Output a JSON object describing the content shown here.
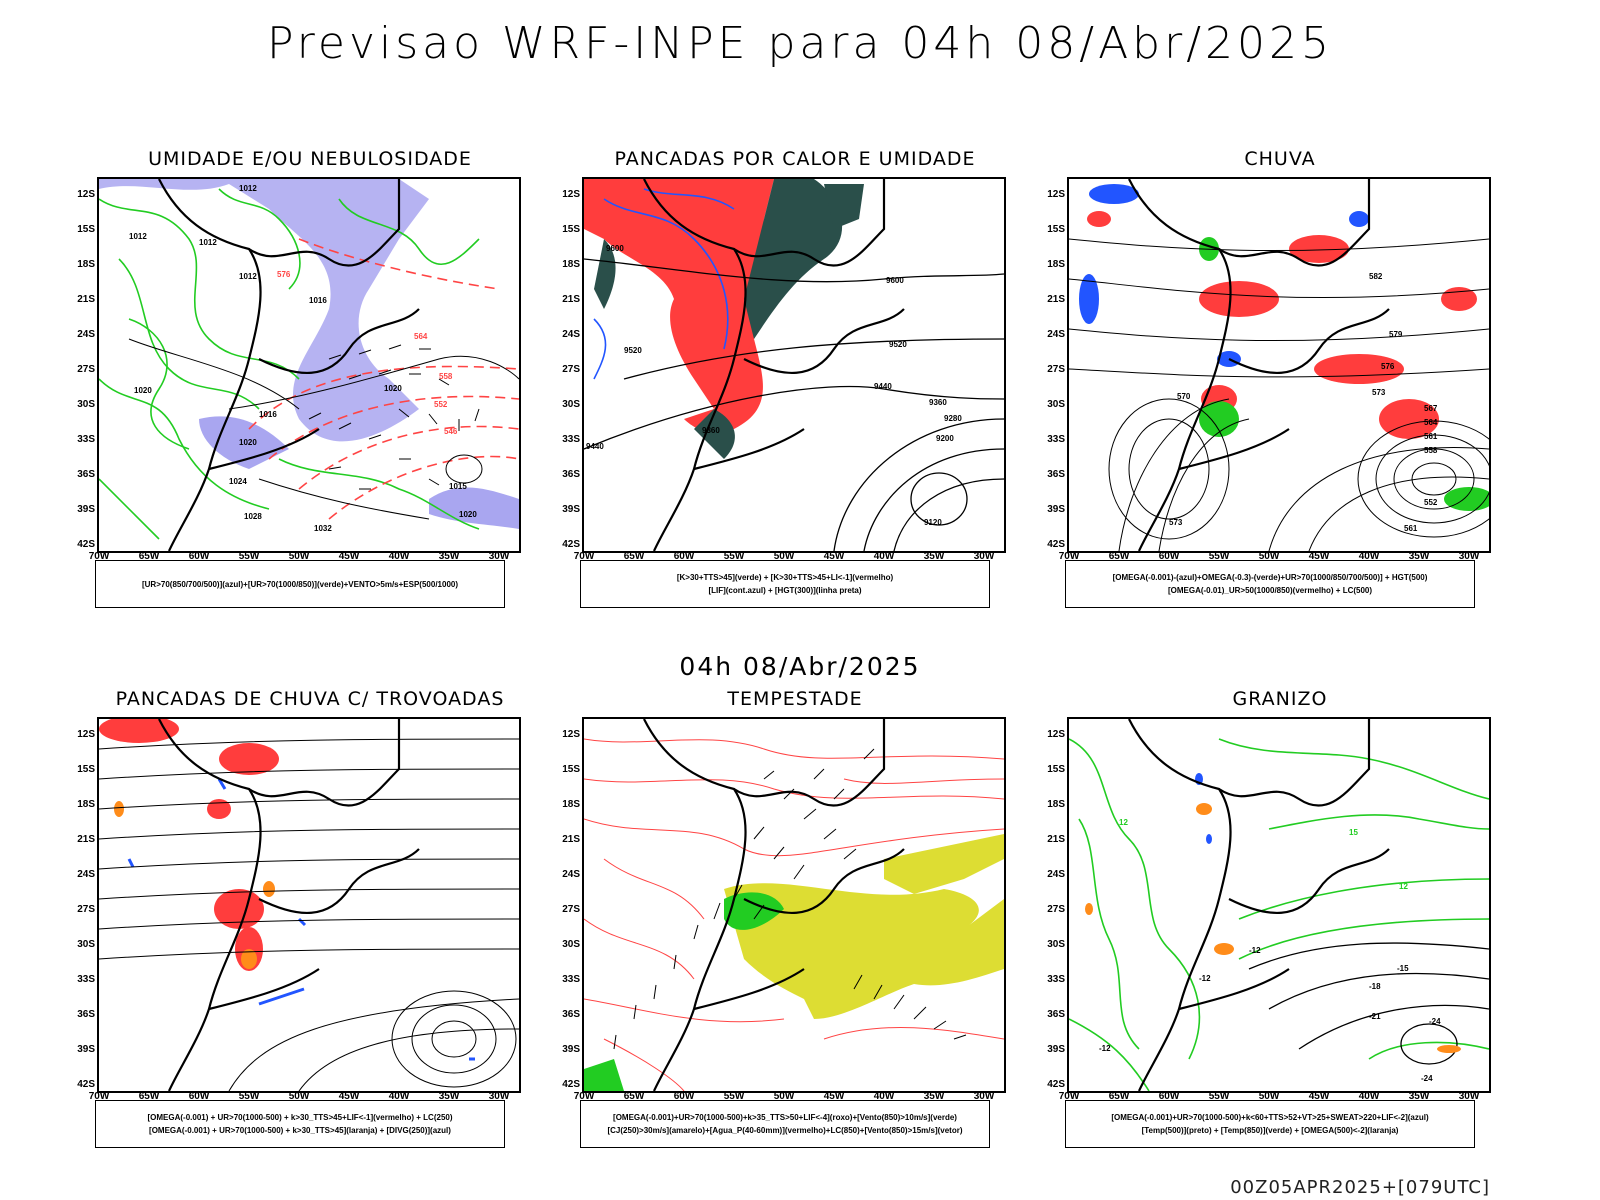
{
  "title": "Previsao WRF-INPE  para 04h 08/Abr/2025",
  "mid_label": "04h 08/Abr/2025",
  "footer": "00Z05APR2025+[079UTC]",
  "y_ticks": [
    "12S",
    "15S",
    "18S",
    "21S",
    "24S",
    "27S",
    "30S",
    "33S",
    "36S",
    "39S",
    "42S"
  ],
  "x_ticks": [
    "70W",
    "65W",
    "60W",
    "55W",
    "50W",
    "45W",
    "40W",
    "35W",
    "30W"
  ],
  "panels": [
    {
      "title": "UMIDADE E/OU NEBULOSIDADE",
      "legend": [
        "[UR>70(850/700/500)](azul)+[UR>70(1000/850)](verde)+VENTO>5m/s+ESP(500/1000)"
      ]
    },
    {
      "title": "PANCADAS POR CALOR E UMIDADE",
      "legend": [
        "[K>30+TTS>45](verde) + [K>30+TTS>45+LI<-1](vermelho)",
        "[LIF](cont.azul) + [HGT(300)](linha preta)"
      ]
    },
    {
      "title": "CHUVA",
      "legend": [
        "[OMEGA(-0.001)-(azul)+OMEGA(-0.3)-(verde)+UR>70(1000/850/700/500)] + HGT(500)",
        "[OMEGA(-0.01)_UR>50(1000/850)(vermelho) + LC(500)"
      ]
    },
    {
      "title": "PANCADAS DE CHUVA C/ TROVOADAS",
      "legend": [
        "[OMEGA(-0.001) + UR>70(1000-500) + k>30_TTS>45+LIF<-1](vermelho) + LC(250)",
        "[OMEGA(-0.001) + UR>70(1000-500) + k>30_TTS>45](laranja) + [DIVG(250)](azul)"
      ]
    },
    {
      "title": "TEMPESTADE",
      "legend": [
        "[OMEGA(-0.001)+UR>70(1000-500)+k>35_TTS>50+LIF<-4](roxo)+[Vento(850)>10m/s](verde)",
        "[CJ(250)>30m/s](amarelo)+[Agua_P(40-60mm)](vermelho)+LC(850)+[Vento(850)>15m/s](vetor)"
      ]
    },
    {
      "title": "GRANIZO",
      "legend": [
        "[OMEGA(-0.001)+UR>70(1000-500)+k<60+TTS>52+VT>25+SWEAT>220+LIF<-2](azul)",
        "[Temp(500)](preto) + [Temp(850)](verde) + [OMEGA(500)<-2](laranja)"
      ]
    }
  ],
  "contour_labels": {
    "p1": [
      "1012",
      "1012",
      "1012",
      "1012",
      "1016",
      "1020",
      "1020",
      "1024",
      "1028",
      "1032",
      "1016",
      "1020",
      "1015",
      "1020",
      "576",
      "564",
      "558",
      "552",
      "546"
    ],
    "p2": [
      "9600",
      "9600",
      "9520",
      "9520",
      "9440",
      "9440",
      "9360",
      "9280",
      "9200",
      "9120",
      "9360"
    ],
    "p3": [
      "582",
      "579",
      "576",
      "573",
      "570",
      "567",
      "564",
      "561",
      "558",
      "552",
      "561",
      "573"
    ],
    "p6": [
      "-12",
      "-12",
      "-15",
      "-18",
      "-21",
      "-24",
      "-24",
      "-12",
      "12",
      "15",
      "12"
    ]
  },
  "colors": {
    "green": "#22cc22",
    "red": "#ff3333",
    "blue": "#2255ff",
    "lavender": "#a9a6f0",
    "darkgreen": "#2a4f4a",
    "yellow": "#dddd33",
    "orange": "#ff8c1a",
    "purple": "#8833cc"
  }
}
